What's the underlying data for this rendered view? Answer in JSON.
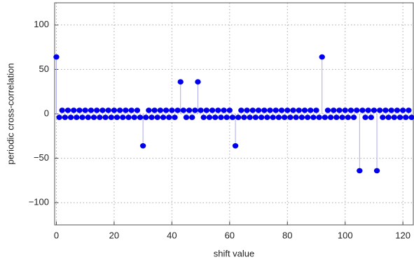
{
  "chart_data": {
    "type": "stem",
    "xlabel": "shift value",
    "ylabel": "periodic cross-correlation",
    "x": [
      0,
      1,
      2,
      3,
      4,
      5,
      6,
      7,
      8,
      9,
      10,
      11,
      12,
      13,
      14,
      15,
      16,
      17,
      18,
      19,
      20,
      21,
      22,
      23,
      24,
      25,
      26,
      27,
      28,
      29,
      30,
      31,
      32,
      33,
      34,
      35,
      36,
      37,
      38,
      39,
      40,
      41,
      42,
      43,
      44,
      45,
      46,
      47,
      48,
      49,
      50,
      51,
      52,
      53,
      54,
      55,
      56,
      57,
      58,
      59,
      60,
      61,
      62,
      63,
      64,
      65,
      66,
      67,
      68,
      69,
      70,
      71,
      72,
      73,
      74,
      75,
      76,
      77,
      78,
      79,
      80,
      81,
      82,
      83,
      84,
      85,
      86,
      87,
      88,
      89,
      90,
      91,
      92,
      93,
      94,
      95,
      96,
      97,
      98,
      99,
      100,
      101,
      102,
      103,
      104,
      105,
      106,
      107,
      108,
      109,
      110,
      111,
      112,
      113,
      114,
      115,
      116,
      117,
      118,
      119,
      120,
      121,
      122,
      123
    ],
    "values": [
      64,
      -4,
      4,
      -4,
      4,
      -4,
      4,
      -4,
      4,
      -4,
      4,
      -4,
      4,
      -4,
      4,
      -4,
      4,
      -4,
      4,
      -4,
      4,
      -4,
      4,
      -4,
      4,
      -4,
      4,
      -4,
      4,
      -4,
      -36,
      -4,
      4,
      -4,
      4,
      -4,
      4,
      -4,
      4,
      -4,
      4,
      -4,
      4,
      36,
      4,
      -4,
      4,
      -4,
      4,
      36,
      4,
      -4,
      4,
      -4,
      4,
      -4,
      4,
      -4,
      4,
      -4,
      4,
      -4,
      -36,
      -4,
      4,
      -4,
      4,
      -4,
      4,
      -4,
      4,
      -4,
      4,
      -4,
      4,
      -4,
      4,
      -4,
      4,
      -4,
      4,
      -4,
      4,
      -4,
      4,
      -4,
      4,
      -4,
      4,
      -4,
      4,
      -4,
      64,
      -4,
      4,
      -4,
      4,
      -4,
      4,
      -4,
      4,
      -4,
      4,
      -4,
      4,
      -64,
      4,
      -4,
      4,
      -4,
      4,
      -64,
      4,
      -4,
      4,
      -4,
      4,
      -4,
      4,
      -4,
      4,
      -4,
      4,
      -4
    ],
    "color": "#0000ee",
    "stem_color": "#aaaaee",
    "xlim": [
      -0.6,
      123.6
    ],
    "ylim": [
      -125,
      125
    ],
    "xticks": [
      0,
      20,
      40,
      60,
      80,
      100,
      120
    ],
    "yticks": [
      {
        "value": -100,
        "label": "−100"
      },
      {
        "value": -50,
        "label": "−50"
      },
      0,
      50,
      100
    ],
    "grid": true
  }
}
